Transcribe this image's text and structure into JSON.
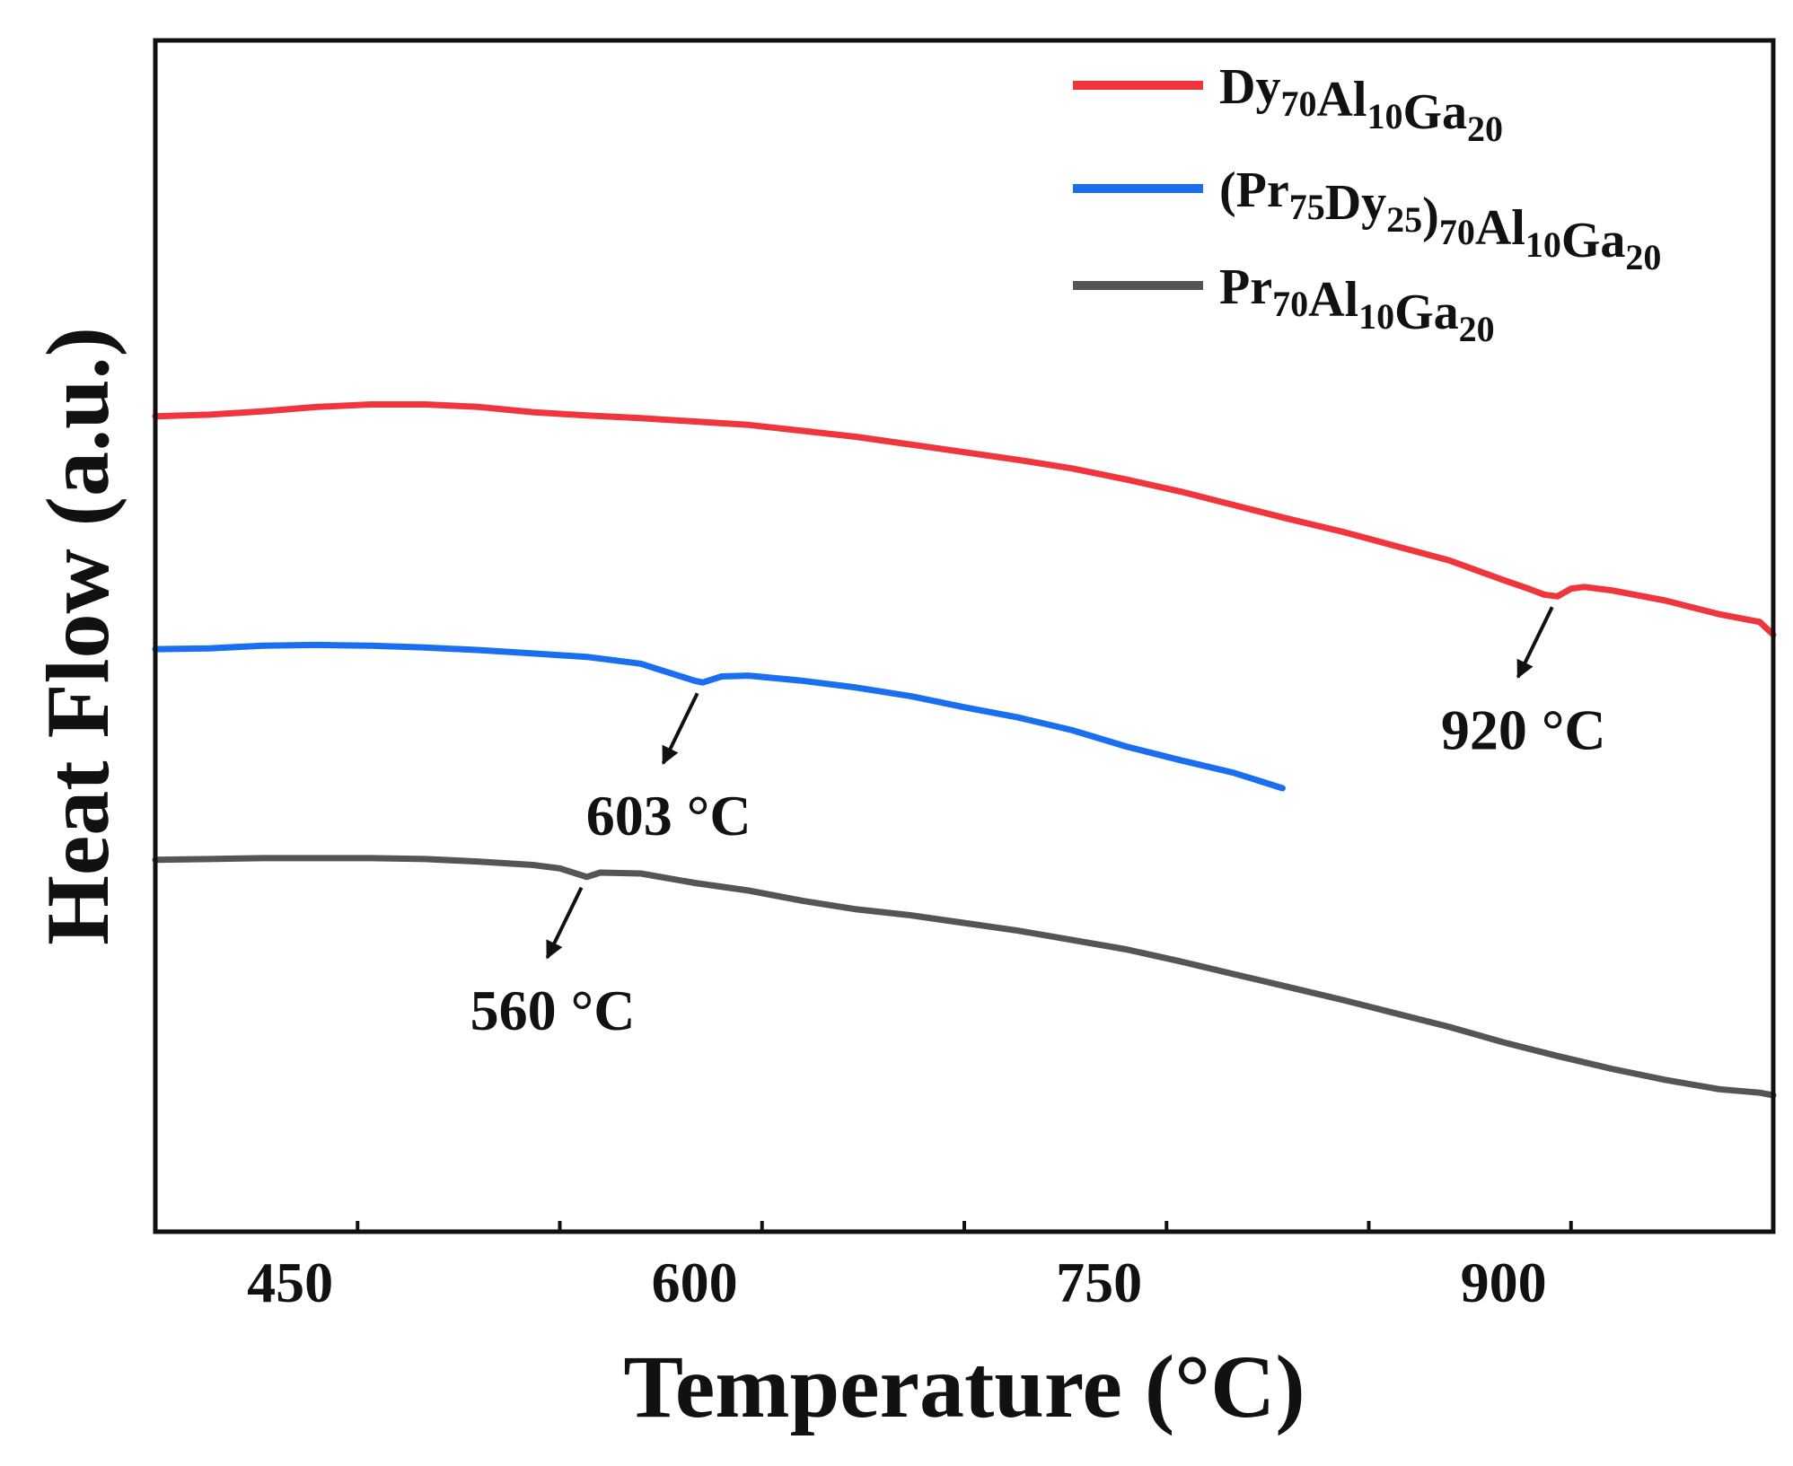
{
  "chart_data": {
    "type": "line",
    "title": "",
    "xlabel": "Temperature (°C)",
    "ylabel": "Heat Flow (a.u.)",
    "xlim": [
      400,
      1000
    ],
    "ylim": [
      0,
      100
    ],
    "xticks": [
      450,
      600,
      750,
      900
    ],
    "yticks": [],
    "grid": false,
    "legend_position": "top-right",
    "series": [
      {
        "name": "Dy70Al10Ga20",
        "legend": {
          "parts": [
            {
              "t": "Dy"
            },
            {
              "t": "70",
              "sub": true
            },
            {
              "t": "Al"
            },
            {
              "t": "10",
              "sub": true
            },
            {
              "t": "Ga"
            },
            {
              "t": "20",
              "sub": true
            }
          ]
        },
        "color": "#f0363c",
        "points": [
          [
            400,
            79.6
          ],
          [
            420,
            79.8
          ],
          [
            440,
            80.2
          ],
          [
            460,
            80.7
          ],
          [
            480,
            81.0
          ],
          [
            500,
            81.0
          ],
          [
            520,
            80.7
          ],
          [
            540,
            80.1
          ],
          [
            560,
            79.7
          ],
          [
            580,
            79.4
          ],
          [
            600,
            79.0
          ],
          [
            620,
            78.6
          ],
          [
            640,
            77.9
          ],
          [
            660,
            77.2
          ],
          [
            680,
            76.3
          ],
          [
            700,
            75.4
          ],
          [
            720,
            74.5
          ],
          [
            740,
            73.5
          ],
          [
            760,
            72.2
          ],
          [
            780,
            70.8
          ],
          [
            800,
            69.2
          ],
          [
            820,
            67.6
          ],
          [
            840,
            66.1
          ],
          [
            860,
            64.4
          ],
          [
            880,
            62.7
          ],
          [
            900,
            60.4
          ],
          [
            910,
            59.3
          ],
          [
            915,
            58.7
          ],
          [
            920,
            58.5
          ],
          [
            925,
            59.4
          ],
          [
            930,
            59.6
          ],
          [
            940,
            59.2
          ],
          [
            960,
            58.0
          ],
          [
            980,
            56.4
          ],
          [
            995,
            55.5
          ],
          [
            1000,
            54.0
          ]
        ]
      },
      {
        "name": "(Pr75Dy25)70Al10Ga20",
        "legend": {
          "parts": [
            {
              "t": "(Pr"
            },
            {
              "t": "75",
              "sub": true
            },
            {
              "t": "Dy"
            },
            {
              "t": "25",
              "sub": true
            },
            {
              "t": ")"
            },
            {
              "t": "70",
              "sub": true
            },
            {
              "t": "Al"
            },
            {
              "t": "10",
              "sub": true
            },
            {
              "t": "Ga"
            },
            {
              "t": "20",
              "sub": true
            }
          ]
        },
        "color": "#1a6ff0",
        "points": [
          [
            400,
            52.3
          ],
          [
            420,
            52.4
          ],
          [
            440,
            52.7
          ],
          [
            460,
            52.8
          ],
          [
            480,
            52.7
          ],
          [
            500,
            52.5
          ],
          [
            520,
            52.2
          ],
          [
            540,
            51.8
          ],
          [
            560,
            51.4
          ],
          [
            580,
            50.6
          ],
          [
            590,
            49.6
          ],
          [
            600,
            48.6
          ],
          [
            603,
            48.4
          ],
          [
            610,
            49.1
          ],
          [
            620,
            49.2
          ],
          [
            640,
            48.6
          ],
          [
            660,
            47.8
          ],
          [
            680,
            46.8
          ],
          [
            700,
            45.5
          ],
          [
            720,
            44.3
          ],
          [
            740,
            42.8
          ],
          [
            760,
            40.9
          ],
          [
            780,
            39.3
          ],
          [
            800,
            37.8
          ],
          [
            818,
            36.0
          ]
        ]
      },
      {
        "name": "Pr70Al10Ga20",
        "legend": {
          "parts": [
            {
              "t": "Pr"
            },
            {
              "t": "70",
              "sub": true
            },
            {
              "t": "Al"
            },
            {
              "t": "10",
              "sub": true
            },
            {
              "t": "Ga"
            },
            {
              "t": "20",
              "sub": true
            }
          ]
        },
        "color": "#555555",
        "points": [
          [
            400,
            27.6
          ],
          [
            420,
            27.7
          ],
          [
            440,
            27.8
          ],
          [
            460,
            27.8
          ],
          [
            480,
            27.8
          ],
          [
            500,
            27.7
          ],
          [
            520,
            27.4
          ],
          [
            540,
            27.0
          ],
          [
            550,
            26.6
          ],
          [
            560,
            25.6
          ],
          [
            565,
            26.1
          ],
          [
            580,
            26.0
          ],
          [
            600,
            24.9
          ],
          [
            620,
            24.0
          ],
          [
            640,
            22.8
          ],
          [
            660,
            21.8
          ],
          [
            680,
            21.1
          ],
          [
            700,
            20.2
          ],
          [
            720,
            19.3
          ],
          [
            740,
            18.2
          ],
          [
            760,
            17.1
          ],
          [
            780,
            15.7
          ],
          [
            800,
            14.2
          ],
          [
            820,
            12.7
          ],
          [
            840,
            11.2
          ],
          [
            860,
            9.6
          ],
          [
            880,
            8.0
          ],
          [
            900,
            6.2
          ],
          [
            920,
            4.6
          ],
          [
            940,
            3.1
          ],
          [
            960,
            1.8
          ],
          [
            980,
            0.7
          ],
          [
            995,
            0.3
          ],
          [
            1000,
            0.0
          ]
        ]
      }
    ],
    "annotations": [
      {
        "text": "920 °C",
        "x": 920,
        "y": 58.5,
        "series": "Dy70Al10Ga20"
      },
      {
        "text": "603 °C",
        "x": 603,
        "y": 48.4,
        "series": "(Pr75Dy25)70Al10Ga20"
      },
      {
        "text": "560 °C",
        "x": 560,
        "y": 25.6,
        "series": "Pr70Al10Ga20"
      }
    ]
  }
}
